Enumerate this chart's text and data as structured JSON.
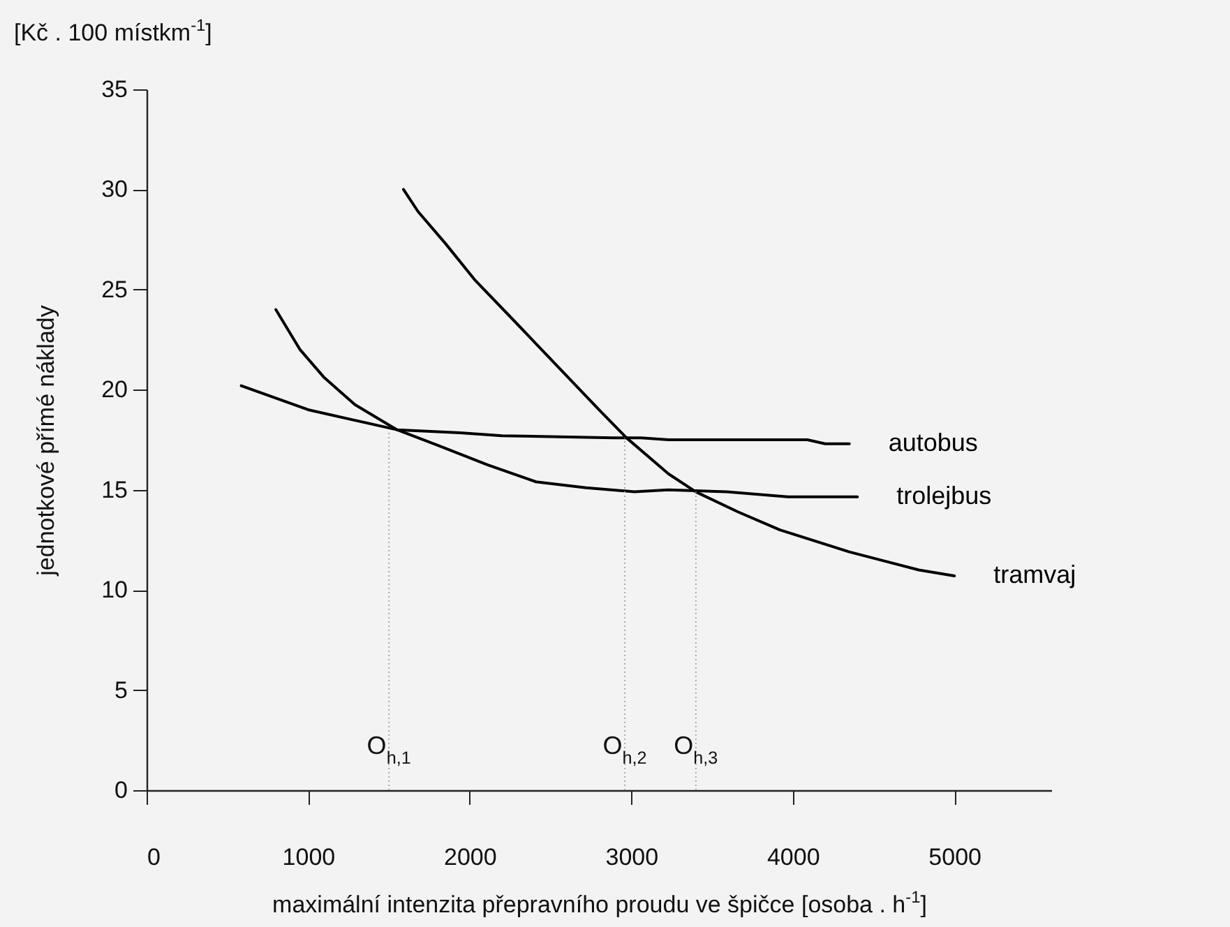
{
  "chart_data": {
    "type": "line",
    "xlabel": "maximální intenzita přepravního proudu ve špičce    [osoba . h$^{-1}$]",
    "ylabel": "jednotkové přímé náklady",
    "xlim": [
      0,
      5600
    ],
    "xticks": [
      0,
      1000,
      2000,
      3000,
      4000,
      5000
    ],
    "ylim": [
      0,
      35
    ],
    "yticks": [
      0,
      5,
      10,
      15,
      20,
      25,
      30,
      35
    ],
    "grid": false,
    "marker": "none",
    "line_style": "solid",
    "series": [
      {
        "name": "autobus",
        "color": "#000000",
        "x": [
          586,
          1000,
          1550,
          1940,
          2200,
          2890,
          3060,
          3230,
          4090,
          4200,
          4350
        ],
        "values": [
          20.2,
          19.0,
          18.0,
          17.85,
          17.7,
          17.6,
          17.6,
          17.5,
          17.5,
          17.3,
          17.3
        ]
      },
      {
        "name": "trolejbus",
        "color": "#000000",
        "x": [
          800,
          950,
          1100,
          1290,
          1550,
          1810,
          2110,
          2410,
          2720,
          3020,
          3230,
          3590,
          3970,
          4400
        ],
        "values": [
          24.0,
          22.0,
          20.6,
          19.25,
          18.0,
          17.2,
          16.25,
          15.4,
          15.1,
          14.9,
          15.0,
          14.9,
          14.65,
          14.65
        ]
      },
      {
        "name": "tramvaj",
        "color": "#000000",
        "x": [
          1590,
          1680,
          1850,
          2030,
          2280,
          2540,
          2800,
          2970,
          3230,
          3400,
          3660,
          3920,
          4350,
          4780,
          5000
        ],
        "values": [
          30.0,
          28.9,
          27.3,
          25.5,
          23.4,
          21.2,
          19.0,
          17.6,
          15.8,
          14.9,
          13.9,
          13.0,
          11.9,
          11.0,
          10.7
        ]
      }
    ],
    "annotations": [
      "[Kč . 100 místkm$^{-1}$]",
      {
        "text": "O$_{h,1}$",
        "x": 1500,
        "y": 18.0
      },
      {
        "text": "O$_{h,2}$",
        "x": 2960,
        "y": 17.6
      },
      {
        "text": "O$_{h,3}$",
        "x": 3400,
        "y": 14.9
      }
    ]
  }
}
